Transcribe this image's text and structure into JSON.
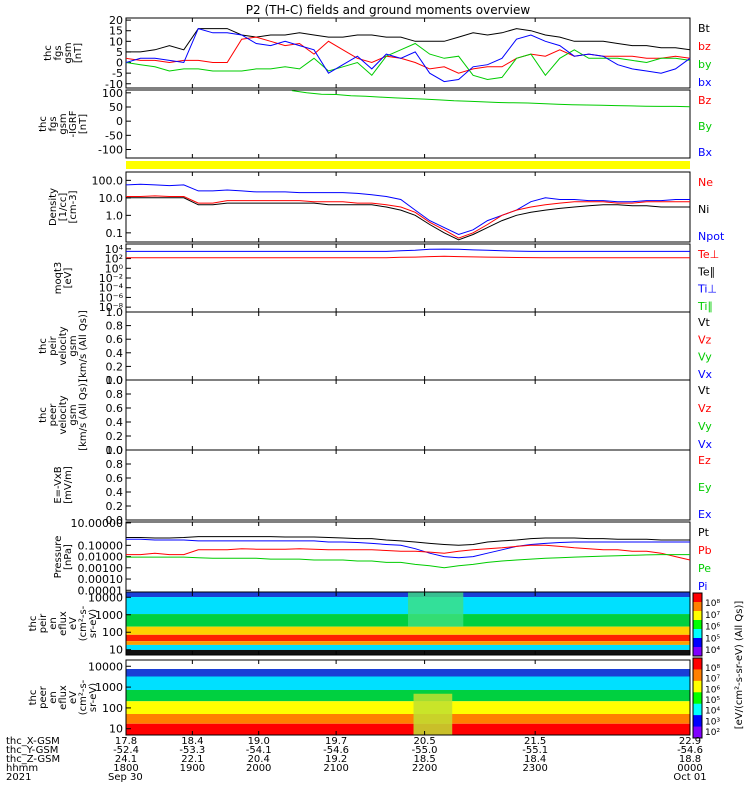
{
  "title": "P2 (TH-C) fields and ground moments overview",
  "colors": {
    "black": "#000000",
    "red": "#ff0000",
    "green": "#00cc00",
    "blue": "#0000ff",
    "yellow": "#ffff00"
  },
  "chart_data": {
    "type": "line",
    "x_ticks": [
      "17.8",
      "18.4",
      "19.0",
      "19.7",
      "20.5",
      "21.5",
      "22.9"
    ],
    "panels": [
      {
        "ylabel": [
          "thc",
          "fgs",
          "gsm",
          "[nT]"
        ],
        "yticks": [
          "20",
          "15",
          "10",
          "5",
          "0",
          "-5",
          "-10"
        ],
        "yscale": "linear",
        "ylim": [
          -12,
          21
        ],
        "legend": [
          {
            "text": "Bt",
            "color": "black"
          },
          {
            "text": "bz",
            "color": "red"
          },
          {
            "text": "by",
            "color": "green"
          },
          {
            "text": "bx",
            "color": "blue"
          }
        ],
        "series": [
          {
            "color": "black",
            "values": [
              5,
              5,
              6,
              8,
              6,
              16,
              16,
              16,
              13,
              12,
              13,
              13,
              14,
              13,
              12,
              12,
              13,
              13,
              12,
              12,
              10,
              10,
              10,
              12,
              14,
              13,
              14,
              16,
              15,
              13,
              12,
              10,
              10,
              10,
              9,
              8,
              8,
              7,
              7,
              6
            ]
          },
          {
            "color": "red",
            "values": [
              2,
              1,
              1,
              0,
              1,
              1,
              0,
              0,
              11,
              12,
              10,
              8,
              9,
              4,
              10,
              6,
              2,
              0,
              3,
              2,
              0,
              -3,
              -2,
              -5,
              -3,
              -2,
              -2,
              2,
              4,
              3,
              6,
              3,
              4,
              3,
              3,
              3,
              2,
              2,
              3,
              2
            ]
          },
          {
            "color": "green",
            "values": [
              0,
              -1,
              -2,
              -4,
              -3,
              -3,
              -4,
              -4,
              -4,
              -3,
              -3,
              -2,
              -3,
              2,
              -4,
              -2,
              0,
              -6,
              3,
              6,
              9,
              4,
              2,
              3,
              -6,
              -8,
              -7,
              2,
              4,
              -6,
              2,
              6,
              2,
              2,
              2,
              1,
              0,
              2,
              2,
              1
            ]
          },
          {
            "color": "blue",
            "values": [
              0,
              2,
              2,
              1,
              0,
              16,
              14,
              14,
              13,
              9,
              8,
              10,
              8,
              6,
              -5,
              -1,
              3,
              -3,
              4,
              2,
              5,
              -5,
              -9,
              -8,
              -2,
              -1,
              2,
              11,
              13,
              10,
              8,
              3,
              4,
              3,
              -1,
              -3,
              -4,
              -5,
              -3,
              2
            ]
          }
        ]
      },
      {
        "ylabel": [
          "thc",
          "fgs",
          "gsm",
          "-IGRF",
          "[nT]"
        ],
        "yticks": [
          "100",
          "50",
          "0",
          "-50",
          "-100"
        ],
        "yscale": "linear",
        "ylim": [
          -130,
          110
        ],
        "legend": [
          {
            "text": "Bz",
            "color": "red"
          },
          {
            "text": "By",
            "color": "green"
          },
          {
            "text": "Bx",
            "color": "blue"
          }
        ],
        "series": [
          {
            "color": "green",
            "x_start": 19.3,
            "values": [
              108,
              100,
              95,
              94,
              90,
              88,
              85,
              82,
              80,
              78,
              75,
              72,
              70,
              68,
              66,
              65,
              64,
              62,
              60,
              58,
              57,
              56,
              55,
              54,
              53,
              52,
              52,
              51
            ]
          }
        ]
      },
      {
        "ylabel": [],
        "yticks": [],
        "bar": {
          "color": "yellow"
        }
      },
      {
        "ylabel": [
          "Density",
          "[1/cc]",
          "[cm-3]"
        ],
        "yticks": [
          "100.0",
          "10.0",
          "1.0",
          "0.1"
        ],
        "yscale": "log",
        "ylim": [
          0.03,
          300
        ],
        "legend": [
          {
            "text": "Ne",
            "color": "red"
          },
          {
            "text": "Ni",
            "color": "black"
          },
          {
            "text": "Npot",
            "color": "blue"
          }
        ],
        "series": [
          {
            "color": "blue",
            "values": [
              55,
              60,
              55,
              50,
              55,
              25,
              25,
              28,
              25,
              22,
              22,
              22,
              20,
              20,
              20,
              20,
              18,
              15,
              12,
              8,
              2,
              0.5,
              0.2,
              0.08,
              0.15,
              0.5,
              1,
              2,
              6,
              10,
              8,
              8,
              7,
              7,
              6,
              6,
              7,
              7,
              8,
              8
            ]
          },
          {
            "color": "red",
            "values": [
              12,
              12,
              13,
              12,
              12,
              5,
              5,
              7,
              7,
              7,
              7,
              7,
              7,
              6,
              6,
              6,
              5,
              5,
              4,
              3,
              1.5,
              0.4,
              0.15,
              0.05,
              0.1,
              0.3,
              1,
              2,
              3,
              4,
              5,
              6,
              6,
              6,
              5,
              5,
              6,
              6,
              6,
              6
            ]
          },
          {
            "color": "black",
            "values": [
              10,
              10,
              10,
              10,
              10,
              4,
              4,
              5,
              5,
              5,
              5,
              5,
              5,
              5,
              4,
              4,
              4,
              4,
              3,
              2,
              1,
              0.3,
              0.1,
              0.04,
              0.08,
              0.2,
              0.5,
              1,
              1.5,
              2,
              2.5,
              3,
              3.5,
              4,
              4,
              3.5,
              3.5,
              3,
              3,
              3
            ]
          }
        ]
      },
      {
        "ylabel": [
          "moqt3",
          "[eV]"
        ],
        "yticks": [
          "10⁴",
          "10²",
          "10⁰",
          "10⁻²",
          "10⁻⁴",
          "10⁻⁶",
          "10⁻⁸"
        ],
        "yscale": "log",
        "ylim": [
          1e-09,
          100000.0
        ],
        "legend": [
          {
            "text": "Te⊥",
            "color": "red"
          },
          {
            "text": "Te∥",
            "color": "black"
          },
          {
            "text": "Ti⊥",
            "color": "blue"
          },
          {
            "text": "Ti∥",
            "color": "green"
          }
        ],
        "series": [
          {
            "color": "blue",
            "values": [
              3000,
              3000,
              3000,
              3000,
              3000,
              3000,
              3000,
              3000,
              3000,
              3000,
              3000,
              3000,
              3000,
              3000,
              3000,
              3000,
              3000,
              3000,
              3000,
              4000,
              5000,
              8000,
              9000,
              8000,
              6000,
              5000,
              4000,
              3500,
              3000,
              3000,
              3000,
              3000,
              3000,
              3000,
              3000,
              3000,
              3000,
              3000,
              3000,
              3000
            ]
          },
          {
            "color": "red",
            "values": [
              150,
              150,
              150,
              150,
              150,
              150,
              150,
              150,
              150,
              150,
              150,
              150,
              150,
              150,
              150,
              150,
              150,
              150,
              150,
              180,
              200,
              260,
              300,
              250,
              220,
              200,
              180,
              170,
              160,
              150,
              150,
              150,
              150,
              150,
              150,
              150,
              150,
              150,
              150,
              150
            ]
          }
        ]
      },
      {
        "ylabel": [
          "thc",
          "peir",
          "velocity",
          "gsm",
          "[km/s (All Qs)]"
        ],
        "yticks": [
          "1.0",
          "0.8",
          "0.6",
          "0.4",
          "0.2",
          "0.0"
        ],
        "yscale": "linear",
        "ylim": [
          0,
          1
        ],
        "legend": [
          {
            "text": "Vt",
            "color": "black"
          },
          {
            "text": "Vz",
            "color": "red"
          },
          {
            "text": "Vy",
            "color": "green"
          },
          {
            "text": "Vx",
            "color": "blue"
          }
        ],
        "series": []
      },
      {
        "ylabel": [
          "thc",
          "peer",
          "velocity",
          "gsm",
          "[km/s (All Qs)]"
        ],
        "yticks": [
          "1.0",
          "0.8",
          "0.6",
          "0.4",
          "0.2",
          "0.0"
        ],
        "yscale": "linear",
        "ylim": [
          0,
          1
        ],
        "legend": [
          {
            "text": "Vt",
            "color": "black"
          },
          {
            "text": "Vz",
            "color": "red"
          },
          {
            "text": "Vy",
            "color": "green"
          },
          {
            "text": "Vx",
            "color": "blue"
          }
        ],
        "series": []
      },
      {
        "ylabel": [
          "E=-VxB",
          "[mV/m]"
        ],
        "yticks": [
          "1.0",
          "0.8",
          "0.6",
          "0.4",
          "0.2",
          "0.0"
        ],
        "yscale": "linear",
        "ylim": [
          0,
          1
        ],
        "legend": [
          {
            "text": "Ez",
            "color": "red"
          },
          {
            "text": "Ey",
            "color": "green"
          },
          {
            "text": "Ex",
            "color": "blue"
          }
        ],
        "series": []
      },
      {
        "ylabel": [
          "Pressure",
          "[nPa]"
        ],
        "yticks": [
          "10.00000",
          "0.10000",
          "0.01000",
          "0.00100",
          "0.00010",
          "0.00001"
        ],
        "yscale": "log",
        "ylim": [
          7e-06,
          12
        ],
        "legend": [
          {
            "text": "Pt",
            "color": "black"
          },
          {
            "text": "Pb",
            "color": "red"
          },
          {
            "text": "Pe",
            "color": "green"
          },
          {
            "text": "Pi",
            "color": "blue"
          }
        ],
        "series": [
          {
            "color": "black",
            "values": [
              0.5,
              0.5,
              0.45,
              0.45,
              0.5,
              0.6,
              0.6,
              0.6,
              0.6,
              0.6,
              0.6,
              0.55,
              0.55,
              0.55,
              0.5,
              0.45,
              0.4,
              0.4,
              0.3,
              0.25,
              0.2,
              0.15,
              0.12,
              0.1,
              0.12,
              0.2,
              0.25,
              0.3,
              0.4,
              0.45,
              0.45,
              0.45,
              0.4,
              0.4,
              0.35,
              0.35,
              0.35,
              0.3,
              0.3,
              0.3
            ]
          },
          {
            "color": "blue",
            "values": [
              0.35,
              0.35,
              0.3,
              0.3,
              0.3,
              0.25,
              0.25,
              0.25,
              0.25,
              0.25,
              0.25,
              0.25,
              0.25,
              0.25,
              0.2,
              0.2,
              0.18,
              0.15,
              0.12,
              0.1,
              0.05,
              0.02,
              0.01,
              0.008,
              0.01,
              0.02,
              0.04,
              0.08,
              0.12,
              0.15,
              0.18,
              0.2,
              0.2,
              0.2,
              0.2,
              0.2,
              0.2,
              0.2,
              0.2,
              0.2
            ]
          },
          {
            "color": "red",
            "values": [
              0.015,
              0.015,
              0.02,
              0.015,
              0.015,
              0.04,
              0.04,
              0.04,
              0.05,
              0.045,
              0.045,
              0.045,
              0.05,
              0.045,
              0.04,
              0.04,
              0.04,
              0.04,
              0.035,
              0.03,
              0.03,
              0.025,
              0.02,
              0.03,
              0.04,
              0.05,
              0.06,
              0.08,
              0.1,
              0.1,
              0.08,
              0.06,
              0.05,
              0.04,
              0.04,
              0.03,
              0.03,
              0.02,
              0.01,
              0.005
            ]
          },
          {
            "color": "green",
            "values": [
              0.009,
              0.009,
              0.009,
              0.009,
              0.009,
              0.008,
              0.007,
              0.007,
              0.007,
              0.007,
              0.006,
              0.006,
              0.006,
              0.005,
              0.005,
              0.005,
              0.004,
              0.004,
              0.003,
              0.003,
              0.002,
              0.0015,
              0.001,
              0.0015,
              0.002,
              0.003,
              0.004,
              0.005,
              0.006,
              0.007,
              0.008,
              0.009,
              0.01,
              0.011,
              0.012,
              0.013,
              0.014,
              0.015,
              0.015,
              0.015
            ]
          }
        ]
      },
      {
        "ylabel": [
          "thc",
          "peir",
          "en",
          "eflux",
          "eV",
          "(cm²-s-",
          "sr-eV)"
        ],
        "yticks": [
          "10000",
          "1000",
          "100",
          "10"
        ],
        "yscale": "log",
        "ylim": [
          5,
          20000
        ],
        "spectrogram": "ion"
      },
      {
        "ylabel": [
          "thc",
          "peer",
          "en",
          "eflux",
          "eV",
          "(cm²-s-",
          "sr-eV)"
        ],
        "yticks": [
          "10000",
          "1000",
          "100",
          "10"
        ],
        "yscale": "log",
        "ylim": [
          5,
          20000
        ],
        "spectrogram": "electron"
      }
    ],
    "colorbar": {
      "label": "[eV/(cm²-s-sr-eV) (All Qs)]",
      "upper_ticks": [
        "10⁸",
        "10⁷",
        "10⁶",
        "10⁵",
        "10⁴"
      ],
      "lower_ticks": [
        "10⁸",
        "10⁷",
        "10⁶",
        "10⁵",
        "10⁴",
        "10³",
        "10²"
      ]
    }
  },
  "footer": {
    "row_labels": [
      "thc_X-GSM",
      "thc_Y-GSM",
      "thc_Z-GSM",
      "hhmm",
      "2021"
    ],
    "columns": [
      [
        "17.8",
        "-52.4",
        "24.1",
        "1800",
        "Sep 30"
      ],
      [
        "18.4",
        "-53.3",
        "22.1",
        "1900",
        ""
      ],
      [
        "19.0",
        "-54.1",
        "20.4",
        "2000",
        ""
      ],
      [
        "19.7",
        "-54.6",
        "19.2",
        "2100",
        ""
      ],
      [
        "20.5",
        "-55.0",
        "18.5",
        "2200",
        ""
      ],
      [
        "21.5",
        "-55.1",
        "18.4",
        "2300",
        ""
      ],
      [
        "22.9",
        "-54.6",
        "18.8",
        "0000",
        "Oct 01"
      ]
    ]
  }
}
